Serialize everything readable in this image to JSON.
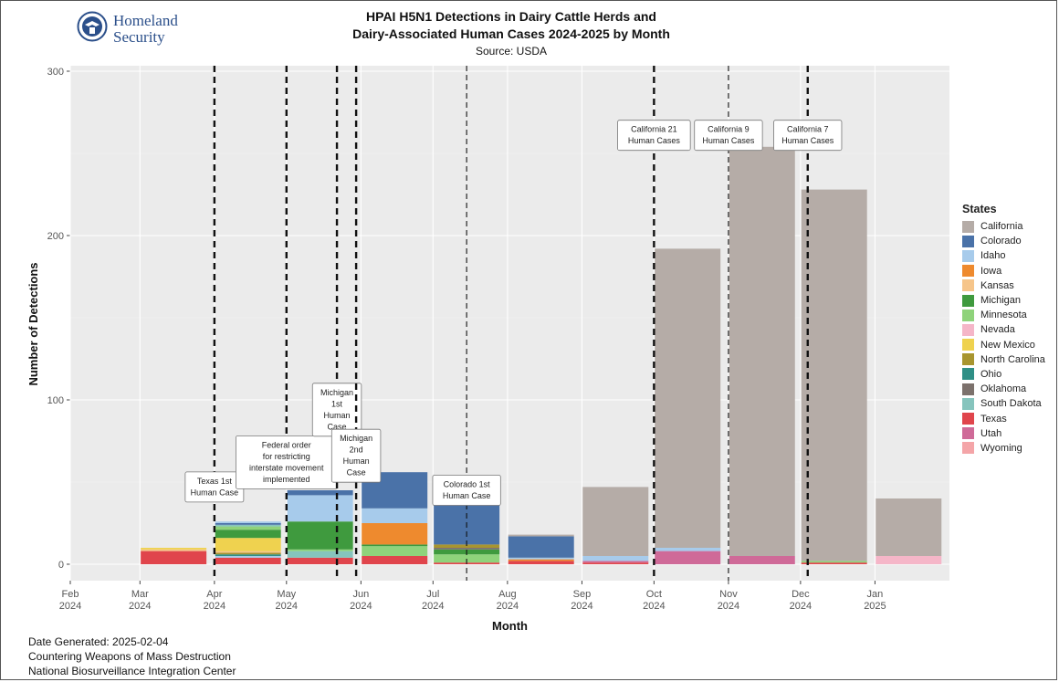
{
  "logo": {
    "line1": "Homeland",
    "line2": "Security"
  },
  "footer": {
    "date": "Date Generated: 2025-02-04",
    "line2": "Countering Weapons of Mass Destruction",
    "line3": "National Biosurveillance Integration Center"
  },
  "chart_data": {
    "type": "bar",
    "stacked": true,
    "title_line1": "HPAI H5N1 Detections in Dairy Cattle Herds and",
    "title_line2": "Dairy-Associated Human Cases 2024-2025 by Month",
    "subtitle": "Source: USDA",
    "xlabel": "Month",
    "ylabel": "Number of Detections",
    "ylim": [
      0,
      300
    ],
    "yticks": [
      0,
      100,
      200,
      300
    ],
    "xlim": [
      "2024-02-01",
      "2025-02-01"
    ],
    "xticks": [
      {
        "date": "2024-02-01",
        "label": [
          "Feb",
          "2024"
        ]
      },
      {
        "date": "2024-03-01",
        "label": [
          "Mar",
          "2024"
        ]
      },
      {
        "date": "2024-04-01",
        "label": [
          "Apr",
          "2024"
        ]
      },
      {
        "date": "2024-05-01",
        "label": [
          "May",
          "2024"
        ]
      },
      {
        "date": "2024-06-01",
        "label": [
          "Jun",
          "2024"
        ]
      },
      {
        "date": "2024-07-01",
        "label": [
          "Jul",
          "2024"
        ]
      },
      {
        "date": "2024-08-01",
        "label": [
          "Aug",
          "2024"
        ]
      },
      {
        "date": "2024-09-01",
        "label": [
          "Sep",
          "2024"
        ]
      },
      {
        "date": "2024-10-01",
        "label": [
          "Oct",
          "2024"
        ]
      },
      {
        "date": "2024-11-01",
        "label": [
          "Nov",
          "2024"
        ]
      },
      {
        "date": "2024-12-01",
        "label": [
          "Dec",
          "2024"
        ]
      },
      {
        "date": "2025-01-01",
        "label": [
          "Jan",
          "2025"
        ]
      }
    ],
    "legend_title": "States",
    "legend_position": "right",
    "grid": true,
    "states": [
      {
        "name": "California",
        "color": "#b5aca7"
      },
      {
        "name": "Colorado",
        "color": "#4a72a8"
      },
      {
        "name": "Idaho",
        "color": "#a7cbeb"
      },
      {
        "name": "Iowa",
        "color": "#ee8a2e"
      },
      {
        "name": "Kansas",
        "color": "#f6c58a"
      },
      {
        "name": "Michigan",
        "color": "#3f9a3e"
      },
      {
        "name": "Minnesota",
        "color": "#8fd37b"
      },
      {
        "name": "Nevada",
        "color": "#f5b6c8"
      },
      {
        "name": "New Mexico",
        "color": "#efd24f"
      },
      {
        "name": "North Carolina",
        "color": "#a8952f"
      },
      {
        "name": "Ohio",
        "color": "#2f8f86"
      },
      {
        "name": "Oklahoma",
        "color": "#7c716c"
      },
      {
        "name": "South Dakota",
        "color": "#86c4bd"
      },
      {
        "name": "Texas",
        "color": "#e0454c"
      },
      {
        "name": "Utah",
        "color": "#cf6a98"
      },
      {
        "name": "Wyoming",
        "color": "#f4a5a8"
      }
    ],
    "bars": [
      {
        "month": "2024-03-15",
        "stack": [
          {
            "state": "Texas",
            "value": 8
          },
          {
            "state": "Kansas",
            "value": 1
          },
          {
            "state": "New Mexico",
            "value": 1
          }
        ]
      },
      {
        "month": "2024-04-15",
        "stack": [
          {
            "state": "Texas",
            "value": 4
          },
          {
            "state": "Idaho",
            "value": 1
          },
          {
            "state": "Ohio",
            "value": 1
          },
          {
            "state": "North Carolina",
            "value": 1
          },
          {
            "state": "Kansas",
            "value": 1
          },
          {
            "state": "New Mexico",
            "value": 8
          },
          {
            "state": "Michigan",
            "value": 5
          },
          {
            "state": "Minnesota",
            "value": 2
          },
          {
            "state": "South Dakota",
            "value": 1
          },
          {
            "state": "Colorado",
            "value": 1
          },
          {
            "state": "Idaho",
            "value": 1
          }
        ]
      },
      {
        "month": "2024-05-15",
        "stack": [
          {
            "state": "Texas",
            "value": 4
          },
          {
            "state": "South Dakota",
            "value": 4
          },
          {
            "state": "Minnesota",
            "value": 1
          },
          {
            "state": "Michigan",
            "value": 17
          },
          {
            "state": "Idaho",
            "value": 16
          },
          {
            "state": "Colorado",
            "value": 3
          }
        ]
      },
      {
        "month": "2024-06-15",
        "stack": [
          {
            "state": "Texas",
            "value": 5
          },
          {
            "state": "Minnesota",
            "value": 6
          },
          {
            "state": "Michigan",
            "value": 1
          },
          {
            "state": "Iowa",
            "value": 13
          },
          {
            "state": "Idaho",
            "value": 9
          },
          {
            "state": "Colorado",
            "value": 22
          }
        ]
      },
      {
        "month": "2024-07-15",
        "stack": [
          {
            "state": "Texas",
            "value": 1
          },
          {
            "state": "Minnesota",
            "value": 5
          },
          {
            "state": "Michigan",
            "value": 3
          },
          {
            "state": "Oklahoma",
            "value": 1
          },
          {
            "state": "North Carolina",
            "value": 2
          },
          {
            "state": "Colorado",
            "value": 28
          }
        ]
      },
      {
        "month": "2024-08-15",
        "stack": [
          {
            "state": "Texas",
            "value": 2
          },
          {
            "state": "Iowa",
            "value": 1
          },
          {
            "state": "Idaho",
            "value": 1
          },
          {
            "state": "Colorado",
            "value": 13
          },
          {
            "state": "California",
            "value": 1
          }
        ]
      },
      {
        "month": "2024-09-15",
        "stack": [
          {
            "state": "Texas",
            "value": 1
          },
          {
            "state": "Utah",
            "value": 1
          },
          {
            "state": "Idaho",
            "value": 3
          },
          {
            "state": "California",
            "value": 42
          }
        ]
      },
      {
        "month": "2024-10-15",
        "stack": [
          {
            "state": "Utah",
            "value": 8
          },
          {
            "state": "Idaho",
            "value": 2
          },
          {
            "state": "California",
            "value": 182
          }
        ]
      },
      {
        "month": "2024-11-15",
        "stack": [
          {
            "state": "Utah",
            "value": 5
          },
          {
            "state": "California",
            "value": 249
          }
        ]
      },
      {
        "month": "2024-12-15",
        "stack": [
          {
            "state": "Texas",
            "value": 1
          },
          {
            "state": "Minnesota",
            "value": 1
          },
          {
            "state": "California",
            "value": 226
          }
        ]
      },
      {
        "month": "2025-01-15",
        "stack": [
          {
            "state": "Nevada",
            "value": 5
          },
          {
            "state": "California",
            "value": 35
          }
        ]
      }
    ],
    "events": [
      {
        "date": "2024-04-01",
        "style": "thick-dashed",
        "label": [
          "Texas 1st",
          "Human Case"
        ],
        "label_y": 47
      },
      {
        "date": "2024-05-01",
        "style": "thick-dashed",
        "label": [
          "Federal order",
          "for restricting",
          "interstate movement",
          "implemented"
        ],
        "label_y": 62
      },
      {
        "date": "2024-05-22",
        "style": "thick-dashed",
        "label": [
          "Michigan",
          "1st",
          "Human",
          "Case"
        ],
        "label_y": 94
      },
      {
        "date": "2024-05-30",
        "style": "thick-dashed",
        "label": [
          "Michigan",
          "2nd",
          "Human",
          "Case"
        ],
        "label_y": 66
      },
      {
        "date": "2024-07-15",
        "style": "thin-dashed",
        "label": [
          "Colorado 1st",
          "Human Case"
        ],
        "label_y": 45
      },
      {
        "date": "2024-10-01",
        "style": "thick-dashed",
        "label": [
          "California 21",
          "Human Cases"
        ],
        "label_y": 261
      },
      {
        "date": "2024-11-01",
        "style": "thin-dashed",
        "label": [
          "California 9",
          "Human Cases"
        ],
        "label_y": 261
      },
      {
        "date": "2024-12-04",
        "style": "thick-dashed",
        "label": [
          "California 7",
          "Human Cases"
        ],
        "label_y": 261
      }
    ]
  }
}
